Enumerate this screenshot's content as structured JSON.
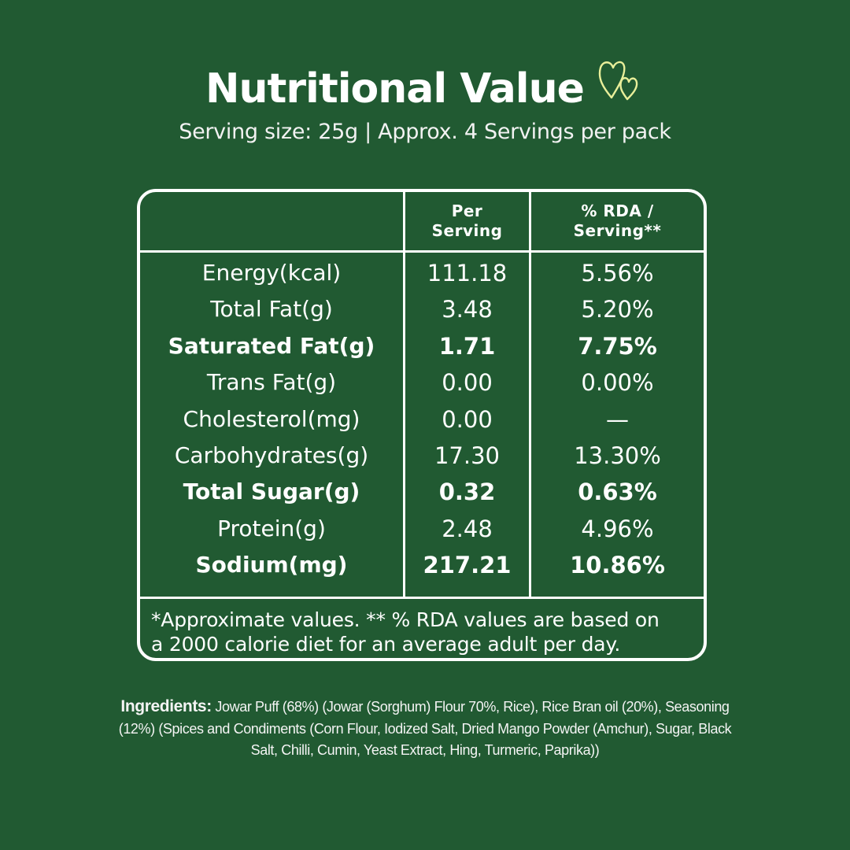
{
  "header": {
    "title": "Nutritional Value",
    "subtitle": "Serving size: 25g | Approx. 4 Servings per pack"
  },
  "table": {
    "columns": [
      "Per\nServing",
      "% RDA /\nServing**"
    ],
    "rows": [
      {
        "nutrient": "Energy(kcal)",
        "per_serving": "111.18",
        "rda": "5.56%",
        "bold": false
      },
      {
        "nutrient": "Total Fat(g)",
        "per_serving": "3.48",
        "rda": "5.20%",
        "bold": false
      },
      {
        "nutrient": "Saturated Fat(g)",
        "per_serving": "1.71",
        "rda": "7.75%",
        "bold": true
      },
      {
        "nutrient": "Trans Fat(g)",
        "per_serving": "0.00",
        "rda": "0.00%",
        "bold": false
      },
      {
        "nutrient": "Cholesterol(mg)",
        "per_serving": "0.00",
        "rda": "—",
        "bold": false
      },
      {
        "nutrient": "Carbohydrates(g)",
        "per_serving": "17.30",
        "rda": "13.30%",
        "bold": false
      },
      {
        "nutrient": "Total Sugar(g)",
        "per_serving": "0.32",
        "rda": "0.63%",
        "bold": true
      },
      {
        "nutrient": "Protein(g)",
        "per_serving": "2.48",
        "rda": "4.96%",
        "bold": false
      },
      {
        "nutrient": "Sodium(mg)",
        "per_serving": "217.21",
        "rda": "10.86%",
        "bold": true
      }
    ],
    "footnote": "*Approximate values. ** % RDA values are based on\na 2000 calorie diet for an average adult per day."
  },
  "ingredients": {
    "label": "Ingredients:",
    "text": " Jowar Puff (68%)  (Jowar (Sorghum) Flour 70%, Rice), Rice Bran oil (20%), Seasoning (12%) (Spices and Condiments (Corn Flour, Iodized Salt, Dried Mango Powder (Amchur), Sugar, Black Salt, Chilli, Cumin, Yeast Extract, Hing, Turmeric, Paprika))"
  },
  "colors": {
    "background": "#215a32",
    "foreground": "#ffffff",
    "heart_accent": "#e9ef9a"
  },
  "icons": {
    "title_decoration": "hearts-icon"
  }
}
